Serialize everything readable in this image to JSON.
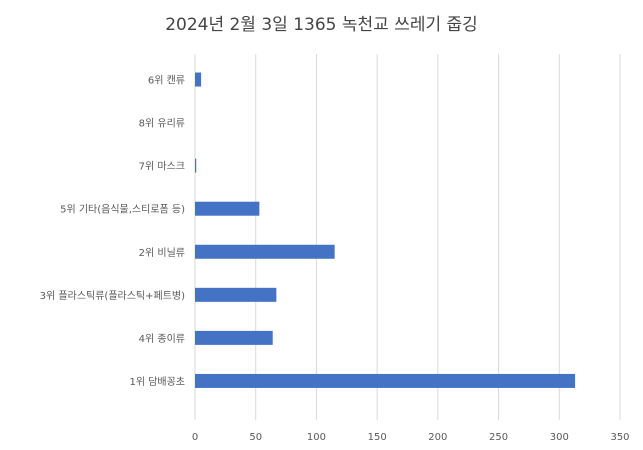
{
  "chart_data": {
    "type": "bar",
    "orientation": "horizontal",
    "title": "2024년 2월 3일 1365 녹천교 쓰레기 줍깅",
    "categories": [
      "6위 캔류",
      "8위 유리류",
      "7위 마스크",
      "5위 기타(음식물,스티로폼 등)",
      "2위 비닐류",
      "3위 플라스틱류(플라스틱+페트병)",
      "4위 종이류",
      "1위 담배꽁초"
    ],
    "values": [
      5,
      0,
      1,
      53,
      115,
      67,
      64,
      313
    ],
    "xlim": [
      0,
      350
    ],
    "xticks": [
      0,
      50,
      100,
      150,
      200,
      250,
      300,
      350
    ],
    "grid": true,
    "legend": "none",
    "colors": {
      "bar": "#4472C4",
      "grid": "#d9d9d9",
      "text": "#595959"
    }
  }
}
